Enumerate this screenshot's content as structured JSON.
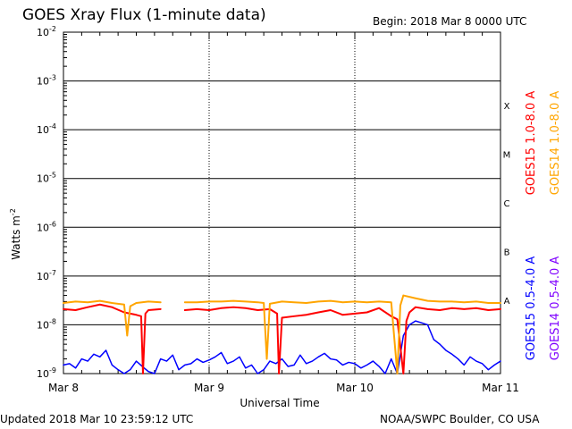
{
  "chart_data": {
    "type": "line",
    "title": "GOES Xray Flux (1-minute data)",
    "begin": "Begin:  2018 Mar 8 0000 UTC",
    "ylabel": "Watts m",
    "ylabel_exp": "-2",
    "xlabel": "Universal Time",
    "footer_left": "Updated 2018 Mar 10 23:59:12 UTC",
    "footer_right": "NOAA/SWPC Boulder, CO USA",
    "yscale": "log",
    "ylim": [
      1e-09,
      0.01
    ],
    "xlim": [
      0,
      72
    ],
    "grid": true,
    "x_ticks": [
      {
        "pos": 0,
        "label": "Mar 8"
      },
      {
        "pos": 24,
        "label": "Mar 9"
      },
      {
        "pos": 48,
        "label": "Mar 10"
      },
      {
        "pos": 72,
        "label": "Mar 11"
      }
    ],
    "y_ticks": [
      {
        "exp": -9,
        "base": "10",
        "sup": "-9"
      },
      {
        "exp": -8,
        "base": "10",
        "sup": "-8"
      },
      {
        "exp": -7,
        "base": "10",
        "sup": "-7"
      },
      {
        "exp": -6,
        "base": "10",
        "sup": "-6"
      },
      {
        "exp": -5,
        "base": "10",
        "sup": "-5"
      },
      {
        "exp": -4,
        "base": "10",
        "sup": "-4"
      },
      {
        "exp": -3,
        "base": "10",
        "sup": "-3"
      },
      {
        "exp": -2,
        "base": "10",
        "sup": "-2"
      }
    ],
    "flare_classes": [
      {
        "label": "A",
        "exp": -8
      },
      {
        "label": "B",
        "exp": -7
      },
      {
        "label": "C",
        "exp": -6
      },
      {
        "label": "M",
        "exp": -5
      },
      {
        "label": "X",
        "exp": -4
      }
    ],
    "series": [
      {
        "name": "GOES15 0.5-4.0 A",
        "color": "#0000ff",
        "x": [
          0,
          1,
          2,
          3,
          4,
          5,
          6,
          7,
          8,
          9,
          10,
          11,
          12,
          13,
          14,
          15,
          16,
          17,
          18,
          19,
          20,
          21,
          22,
          23,
          24,
          25,
          26,
          27,
          28,
          29,
          30,
          31,
          32,
          33,
          34,
          35,
          36,
          37,
          38,
          39,
          40,
          41,
          42,
          43,
          44,
          45,
          46,
          47,
          48,
          49,
          50,
          51,
          52,
          53,
          54,
          55,
          56,
          57,
          58,
          59,
          60,
          61,
          62,
          63,
          64,
          65,
          66,
          67,
          68,
          69,
          70,
          71,
          72
        ],
        "y": [
          1.5e-09,
          1.6e-09,
          1.3e-09,
          2e-09,
          1.8e-09,
          2.5e-09,
          2.2e-09,
          3e-09,
          1.5e-09,
          1.2e-09,
          1e-09,
          1.2e-09,
          1.8e-09,
          1.4e-09,
          1.1e-09,
          1e-09,
          2e-09,
          1.8e-09,
          2.4e-09,
          1.2e-09,
          1.5e-09,
          1.6e-09,
          2e-09,
          1.7e-09,
          1.9e-09,
          2.2e-09,
          2.7e-09,
          1.6e-09,
          1.8e-09,
          2.2e-09,
          1.3e-09,
          1.5e-09,
          1e-09,
          1.2e-09,
          1.8e-09,
          1.6e-09,
          2e-09,
          1.4e-09,
          1.5e-09,
          2.4e-09,
          1.6e-09,
          1.8e-09,
          2.2e-09,
          2.6e-09,
          2e-09,
          1.9e-09,
          1.5e-09,
          1.7e-09,
          1.6e-09,
          1.3e-09,
          1.5e-09,
          1.8e-09,
          1.4e-09,
          1e-09,
          2e-09,
          1e-09,
          6e-09,
          1e-08,
          1.2e-08,
          1.1e-08,
          1e-08,
          5e-09,
          4e-09,
          3e-09,
          2.5e-09,
          2e-09,
          1.5e-09,
          2.2e-09,
          1.8e-09,
          1.6e-09,
          1.2e-09,
          1.5e-09,
          1.8e-09
        ]
      },
      {
        "name": "GOES15 1.0-8.0 A",
        "color": "#ff0000",
        "x": [
          0,
          2,
          4,
          6,
          8,
          10,
          12,
          12.8,
          13.1,
          13.5,
          14,
          16,
          18,
          20,
          22,
          24,
          26,
          28,
          30,
          32,
          34,
          35.2,
          35.5,
          36,
          38,
          40,
          42,
          44,
          46,
          48,
          50,
          52,
          54,
          55,
          56,
          56.5,
          57,
          58,
          60,
          62,
          64,
          66,
          68,
          70,
          72
        ],
        "y": [
          2.1e-08,
          2e-08,
          2.3e-08,
          2.6e-08,
          2.3e-08,
          1.8e-08,
          1.6e-08,
          1.5e-08,
          1e-09,
          1.7e-08,
          2e-08,
          2.1e-08,
          null,
          2e-08,
          2.1e-08,
          2e-08,
          2.2e-08,
          2.3e-08,
          2.2e-08,
          2e-08,
          2.1e-08,
          1.7e-08,
          1e-09,
          1.4e-08,
          1.5e-08,
          1.6e-08,
          1.8e-08,
          2e-08,
          1.6e-08,
          1.7e-08,
          1.8e-08,
          2.2e-08,
          1.5e-08,
          1.3e-08,
          1e-09,
          1.2e-08,
          1.8e-08,
          2.3e-08,
          2.1e-08,
          2e-08,
          2.2e-08,
          2.1e-08,
          2.2e-08,
          2e-08,
          2.1e-08
        ]
      },
      {
        "name": "GOES14 1.0-8.0 A",
        "color": "#ffa500",
        "x": [
          0,
          2,
          4,
          6,
          8,
          10,
          10.5,
          11,
          12,
          14,
          16,
          18,
          20,
          22,
          24,
          26,
          28,
          30,
          32,
          33,
          33.5,
          34,
          36,
          38,
          40,
          42,
          44,
          46,
          48,
          50,
          52,
          54,
          55,
          55.5,
          56,
          58,
          60,
          62,
          64,
          66,
          68,
          70,
          72
        ],
        "y": [
          2.8e-08,
          3e-08,
          2.9e-08,
          3.1e-08,
          2.8e-08,
          2.6e-08,
          6e-09,
          2.4e-08,
          2.8e-08,
          3e-08,
          2.9e-08,
          null,
          2.9e-08,
          2.9e-08,
          3e-08,
          3e-08,
          3.1e-08,
          3e-08,
          2.9e-08,
          2.8e-08,
          2e-09,
          2.7e-08,
          3e-08,
          2.9e-08,
          2.8e-08,
          3e-08,
          3.1e-08,
          2.9e-08,
          3e-08,
          2.9e-08,
          3e-08,
          2.9e-08,
          1e-09,
          2.5e-08,
          4e-08,
          3.5e-08,
          3.1e-08,
          3e-08,
          3e-08,
          2.9e-08,
          3e-08,
          2.8e-08,
          2.8e-08
        ]
      },
      {
        "name": "GOES14 0.5-4.0 A",
        "color": "#7f00ff",
        "x": [
          0,
          72
        ],
        "y": [
          null,
          null
        ]
      }
    ],
    "legend": "right-vertical"
  }
}
